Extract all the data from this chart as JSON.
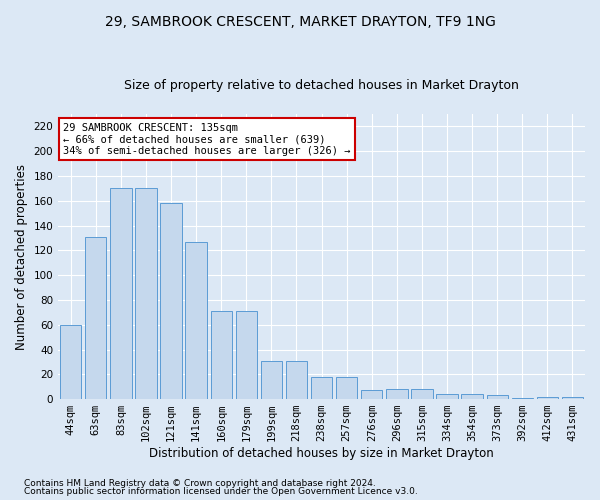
{
  "title": "29, SAMBROOK CRESCENT, MARKET DRAYTON, TF9 1NG",
  "subtitle": "Size of property relative to detached houses in Market Drayton",
  "xlabel": "Distribution of detached houses by size in Market Drayton",
  "ylabel": "Number of detached properties",
  "categories": [
    "44sqm",
    "63sqm",
    "83sqm",
    "102sqm",
    "121sqm",
    "141sqm",
    "160sqm",
    "179sqm",
    "199sqm",
    "218sqm",
    "238sqm",
    "257sqm",
    "276sqm",
    "296sqm",
    "315sqm",
    "334sqm",
    "354sqm",
    "373sqm",
    "392sqm",
    "412sqm",
    "431sqm"
  ],
  "values": [
    60,
    131,
    170,
    170,
    158,
    127,
    71,
    71,
    31,
    31,
    18,
    18,
    7,
    8,
    8,
    4,
    4,
    3,
    1,
    2,
    2
  ],
  "bar_color": "#c5d8ed",
  "bar_edge_color": "#5b9bd5",
  "annotation_text": "29 SAMBROOK CRESCENT: 135sqm\n← 66% of detached houses are smaller (639)\n34% of semi-detached houses are larger (326) →",
  "annotation_box_color": "#ffffff",
  "annotation_box_edge_color": "#cc0000",
  "footer1": "Contains HM Land Registry data © Crown copyright and database right 2024.",
  "footer2": "Contains public sector information licensed under the Open Government Licence v3.0.",
  "bg_color": "#dce8f5",
  "plot_bg_color": "#dce8f5",
  "ylim": [
    0,
    230
  ],
  "yticks": [
    0,
    20,
    40,
    60,
    80,
    100,
    120,
    140,
    160,
    180,
    200,
    220
  ],
  "grid_color": "#ffffff",
  "title_fontsize": 10,
  "subtitle_fontsize": 9,
  "xlabel_fontsize": 8.5,
  "ylabel_fontsize": 8.5,
  "tick_fontsize": 7.5,
  "footer_fontsize": 6.5
}
